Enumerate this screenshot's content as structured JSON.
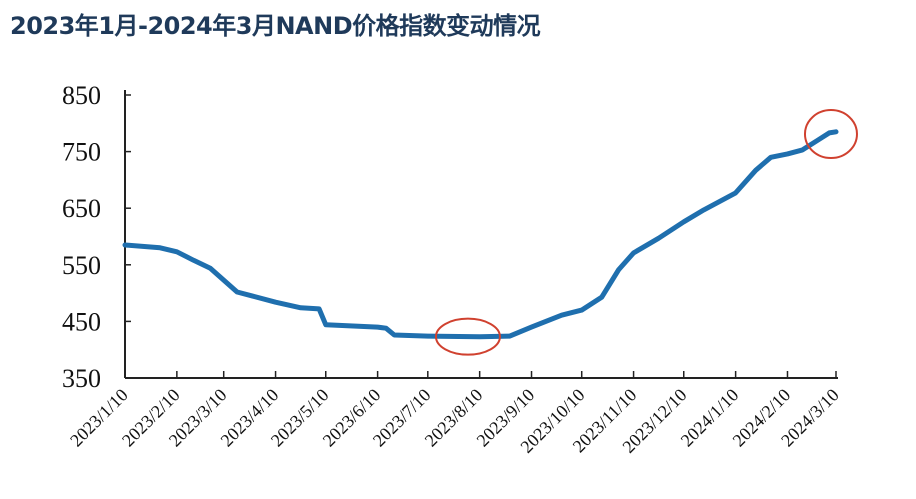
{
  "chart_data": {
    "type": "line",
    "title": "2023年1月-2024年3月NAND价格指数变动情况",
    "xlabel": "",
    "ylabel": "",
    "ylim": [
      350,
      850
    ],
    "yticks": [
      "350",
      "450",
      "550",
      "650",
      "750",
      "850"
    ],
    "xticks": [
      "2023/1/10",
      "2023/2/10",
      "2023/3/10",
      "2023/4/10",
      "2023/5/10",
      "2023/6/10",
      "2023/7/10",
      "2023/8/10",
      "2023/9/10",
      "2023/10/10",
      "2023/11/10",
      "2023/12/10",
      "2024/1/10",
      "2024/2/10",
      "2024/3/10"
    ],
    "grid": false,
    "line_color": "#1f6fae",
    "highlight_color": "#d0412f",
    "series": [
      {
        "x": [
          "2023/1/10",
          "2023/1/31",
          "2023/2/10",
          "2023/2/20",
          "2023/3/2",
          "2023/3/10",
          "2023/3/18",
          "2023/3/27",
          "2023/4/10",
          "2023/4/25",
          "2023/5/6",
          "2023/5/10",
          "2023/6/10",
          "2023/6/15",
          "2023/6/20",
          "2023/7/10",
          "2023/8/10",
          "2023/8/28",
          "2023/9/10",
          "2023/9/28",
          "2023/10/10",
          "2023/10/22",
          "2023/11/1",
          "2023/11/10",
          "2023/11/25",
          "2023/12/10",
          "2023/12/22",
          "2024/1/10",
          "2024/1/22",
          "2024/1/31",
          "2024/2/10",
          "2024/2/19",
          "2024/2/28",
          "2024/3/6",
          "2024/3/10"
        ],
        "y": [
          585,
          580,
          573,
          558,
          544,
          523,
          502,
          495,
          484,
          474,
          472,
          444,
          440,
          438,
          426,
          424,
          423,
          424,
          440,
          461,
          470,
          493,
          541,
          571,
          597,
          626,
          647,
          677,
          717,
          740,
          746,
          753,
          770,
          783,
          785
        ]
      }
    ],
    "highlights": [
      {
        "x": "2023/8/3",
        "y": 423
      },
      {
        "x": "2024/3/7",
        "y": 781
      }
    ]
  }
}
